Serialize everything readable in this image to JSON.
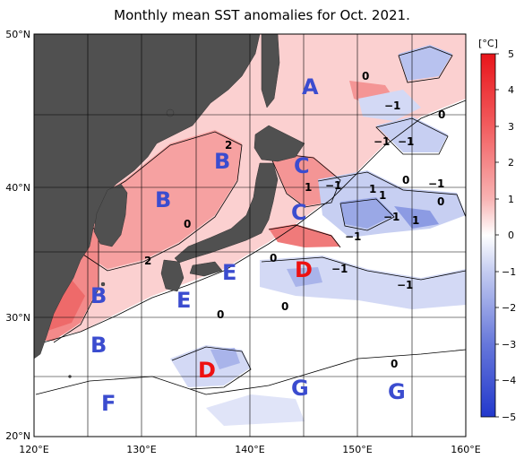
{
  "title": "Monthly mean SST anomalies for Oct. 2021.",
  "lat_labels": [
    "50°N",
    "40°N",
    "30°N",
    "20°N"
  ],
  "lon_labels": [
    "120°E",
    "130°E",
    "140°E",
    "150°E",
    "160°E"
  ],
  "colorbar": {
    "unit": "[°C]",
    "ticks": [
      "5",
      "4",
      "3",
      "2",
      "1",
      "0",
      "−1",
      "−2",
      "−3",
      "−4",
      "−5"
    ],
    "colors_high_to_low": [
      "#e8151a",
      "#ee3b3e",
      "#f25d5f",
      "#f58080",
      "#f8a2a2",
      "#fbc6c6",
      "#fde6e6",
      "#ffffff",
      "#e2e6f8",
      "#c4ccf1",
      "#a4b0ea",
      "#8594e2",
      "#6677da",
      "#4759d3",
      "#2238cc"
    ]
  },
  "region_labels": [
    "A",
    "B",
    "C",
    "C",
    "B",
    "B",
    "E",
    "E",
    "D",
    "B",
    "B",
    "D",
    "G",
    "G",
    "F"
  ],
  "contour_labels": [
    "0",
    "−1",
    "0",
    "−1",
    "2",
    "1",
    "−1",
    "0",
    "1",
    "−1",
    "1",
    "0",
    "1",
    "−1",
    "−1",
    "0",
    "−1",
    "2",
    "0",
    "0",
    "−1",
    "0",
    "0",
    "−1"
  ]
}
